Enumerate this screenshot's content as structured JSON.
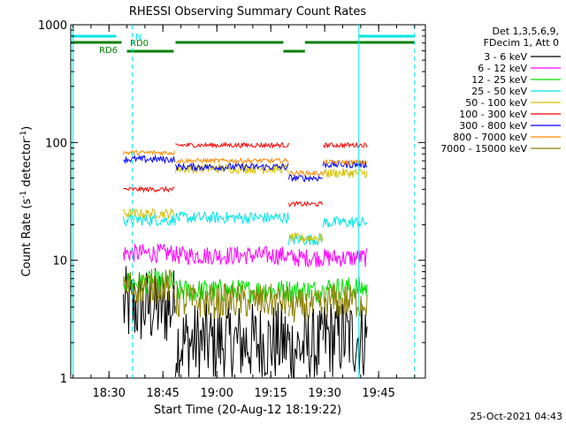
{
  "chart_data": {
    "type": "line",
    "title": "RHESSI Observing Summary Count Rates",
    "xlabel": "Start Time (20-Aug-12 18:19:22)",
    "ylabel": "Count Rate (s",
    "ylabel_sup": "-1",
    "ylabel_mid": " detector",
    "ylabel_end": ")",
    "yscale": "log",
    "ylim": [
      1,
      1000
    ],
    "xlim": [
      "18:19:22",
      "19:58:00"
    ],
    "x_ticks": [
      "18:30",
      "18:45",
      "19:00",
      "19:15",
      "19:30",
      "19:45"
    ],
    "y_ticks": [
      "1",
      "10",
      "100",
      "1000"
    ],
    "legend_position": "top-right",
    "legend_header": [
      "Det 1,3,5,6,9,",
      "FDecim 1, Att 0"
    ],
    "flag_labels": {
      "N": "N",
      "RD0": "RD0",
      "RD6": "RD6"
    },
    "timestamp": "25-Oct-2021 04:43",
    "segments": [
      {
        "start": "18:34:00",
        "end": "18:48:30"
      },
      {
        "start": "18:48:30",
        "end": "19:20:00"
      },
      {
        "start": "19:20:00",
        "end": "19:29:30"
      },
      {
        "start": "19:29:30",
        "end": "19:42:00"
      }
    ],
    "series": [
      {
        "name": "3 - 6 keV",
        "color": "#000000",
        "levels": [
          4,
          2,
          1.8,
          2.2
        ],
        "noise": 0.35
      },
      {
        "name": "6 - 12 keV",
        "color": "#ff00ff",
        "levels": [
          11.5,
          11,
          10.5,
          10.5
        ],
        "noise": 0.08
      },
      {
        "name": "12 - 25 keV",
        "color": "#00e000",
        "levels": [
          6.5,
          5.5,
          5.5,
          5.8
        ],
        "noise": 0.1
      },
      {
        "name": "25 - 50 keV",
        "color": "#00e5e5",
        "levels": [
          22,
          23,
          15,
          21
        ],
        "noise": 0.05
      },
      {
        "name": "50 - 100 keV",
        "color": "#d4c000",
        "levels": [
          25,
          60,
          15.5,
          55
        ],
        "noise": 0.04
      },
      {
        "name": "100 - 300 keV",
        "color": "#ff0000",
        "levels": [
          40,
          95,
          30,
          95
        ],
        "noise": 0.02
      },
      {
        "name": "300 - 800 keV",
        "color": "#0000ff",
        "levels": [
          72,
          62,
          50,
          65
        ],
        "noise": 0.03
      },
      {
        "name": "800 - 7000 keV",
        "color": "#ff8c00",
        "levels": [
          82,
          70,
          55,
          68
        ],
        "noise": 0.02
      },
      {
        "name": "7000 - 15000 keV",
        "color": "#8b8000",
        "levels": [
          6,
          4.5,
          4,
          4.5
        ],
        "noise": 0.15
      }
    ]
  }
}
